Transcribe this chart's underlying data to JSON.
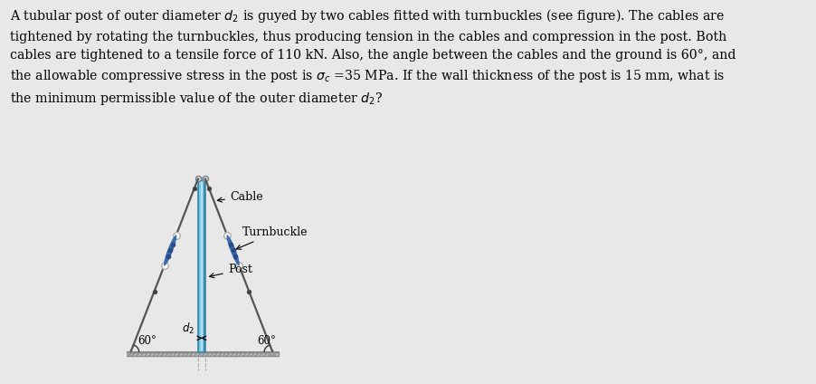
{
  "bg_color": "#e8e8e8",
  "fig_width": 9.02,
  "fig_height": 4.24,
  "post_color_light": "#7ec8e3",
  "post_color_mid": "#5ab0d0",
  "post_color_dark": "#3a88aa",
  "post_highlight": "#c0e8f8",
  "cable_color": "#555555",
  "turnbuckle_color": "#3a6aaa",
  "turnbuckle_dot_color": "#2a4a88",
  "ground_color": "#aaaaaa",
  "ground_fill": "#cccccc",
  "label_cable": "Cable",
  "label_turnbuckle": "Turnbuckle",
  "label_post": "Post",
  "label_d2": "$d_2$",
  "label_60left": "60°",
  "label_60right": "60°",
  "text_line1": "A tubular post of outer diameter $d_2$ is guyed by two cables fitted with turnbuckles (see figure). The cables are",
  "text_line2": "tightened by rotating the turnbuckles, thus producing tension in the cables and compression in the post. Both",
  "text_line3": "cables are tightened to a tensile force of 110 kN. Also, the angle between the cables and the ground is 60°, and",
  "text_line4": "the allowable compressive stress in the post is $\\sigma_c$ =35 MPa. If the wall thickness of the post is 15 mm, what is",
  "text_line5": "the minimum permissible value of the outer diameter $d_2$?"
}
